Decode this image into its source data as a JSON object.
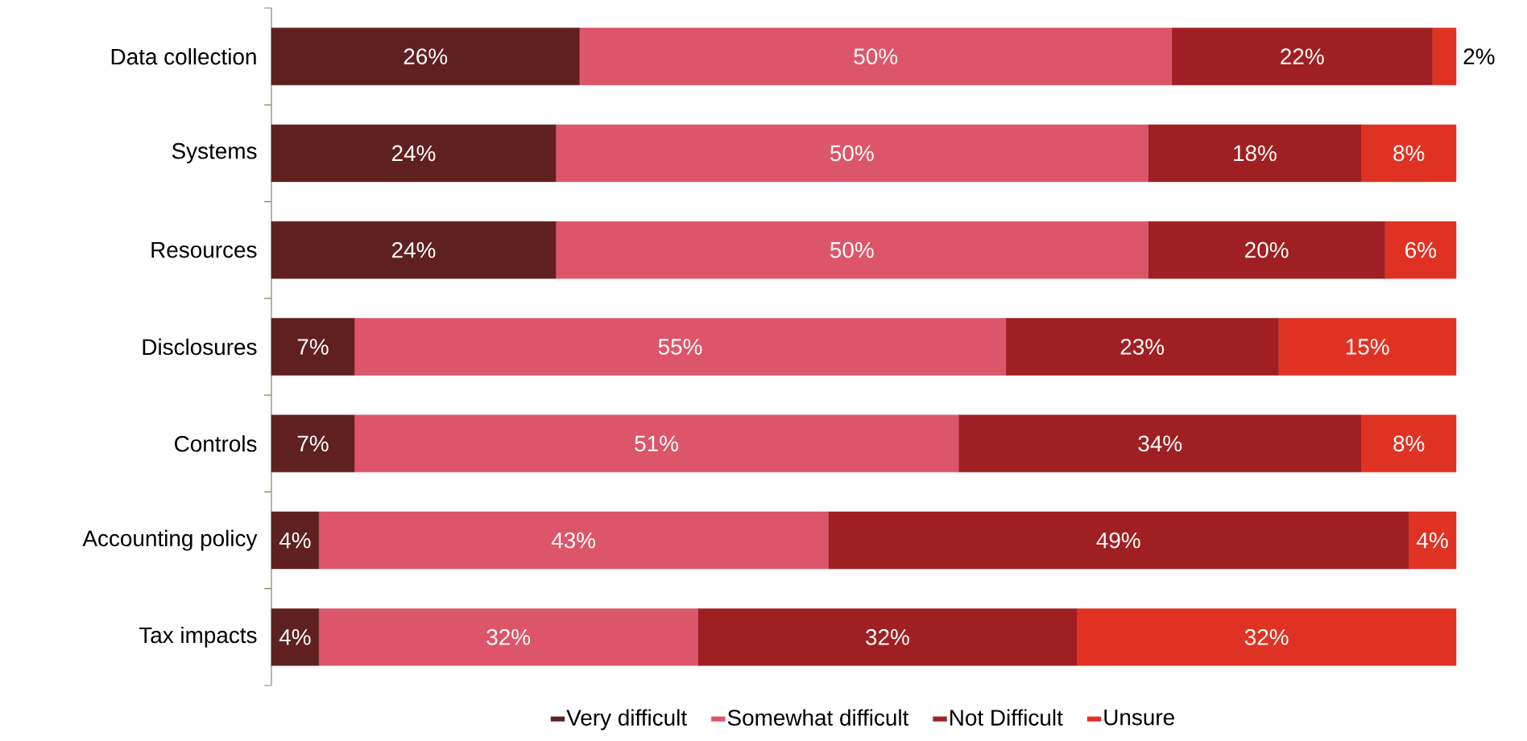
{
  "chart_data": {
    "type": "bar",
    "orientation": "horizontal",
    "stacked": true,
    "legend": "bottom",
    "categories": [
      "Data collection",
      "Systems",
      "Resources",
      "Disclosures",
      "Controls",
      "Accounting policy",
      "Tax impacts"
    ],
    "series": [
      {
        "name": "Very difficult",
        "color": "#5f2120",
        "values": [
          26,
          24,
          24,
          7,
          7,
          4,
          4
        ],
        "value_labels": [
          "26%",
          "24%",
          "24%",
          "7%",
          "7%",
          "4%",
          "4%"
        ]
      },
      {
        "name": "Somewhat difficult",
        "color": "#dc5569",
        "values": [
          50,
          50,
          50,
          55,
          51,
          43,
          32
        ],
        "value_labels": [
          "50%",
          "50%",
          "50%",
          "55%",
          "51%",
          "43%",
          "32%"
        ]
      },
      {
        "name": "Not Difficult",
        "color": "#a01f22",
        "values": [
          22,
          18,
          20,
          23,
          34,
          49,
          32
        ],
        "value_labels": [
          "22%",
          "18%",
          "20%",
          "23%",
          "34%",
          "49%",
          "32%"
        ]
      },
      {
        "name": "Unsure",
        "color": "#e03222",
        "values": [
          2,
          8,
          6,
          15,
          8,
          4,
          32
        ],
        "value_labels": [
          "2%",
          "8%",
          "6%",
          "15%",
          "8%",
          "4%",
          "32%"
        ]
      }
    ]
  }
}
